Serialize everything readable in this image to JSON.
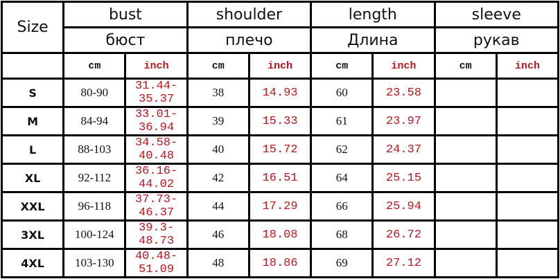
{
  "header": {
    "size_label": "Size",
    "measures": [
      {
        "en": "bust",
        "ru": "бюст"
      },
      {
        "en": "shoulder",
        "ru": "плечо"
      },
      {
        "en": "length",
        "ru": "Длина"
      },
      {
        "en": "sleeve",
        "ru": "рукав"
      }
    ],
    "unit_cm": "cm",
    "unit_inch": "inch"
  },
  "colors": {
    "inch_text": "#c0141e",
    "cm_text": "#111111",
    "border": "#000000"
  },
  "rows": [
    {
      "size": "S",
      "vals": [
        "80-90",
        "31.44-35.37",
        "38",
        "14.93",
        "60",
        "23.58",
        "",
        ""
      ]
    },
    {
      "size": "M",
      "vals": [
        "84-94",
        "33.01-36.94",
        "39",
        "15.33",
        "61",
        "23.97",
        "",
        ""
      ]
    },
    {
      "size": "L",
      "vals": [
        "88-103",
        "34.58-40.48",
        "40",
        "15.72",
        "62",
        "24.37",
        "",
        ""
      ]
    },
    {
      "size": "XL",
      "vals": [
        "92-112",
        "36.16-44.02",
        "42",
        "16.51",
        "64",
        "25.15",
        "",
        ""
      ]
    },
    {
      "size": "XXL",
      "vals": [
        "96-118",
        "37.73-46.37",
        "44",
        "17.29",
        "66",
        "25.94",
        "",
        ""
      ]
    },
    {
      "size": "3XL",
      "vals": [
        "100-124",
        "39.3-48.73",
        "46",
        "18.08",
        "68",
        "26.72",
        "",
        ""
      ]
    },
    {
      "size": "4XL",
      "vals": [
        "103-130",
        "40.48-51.09",
        "48",
        "18.86",
        "69",
        "27.12",
        "",
        ""
      ]
    }
  ]
}
